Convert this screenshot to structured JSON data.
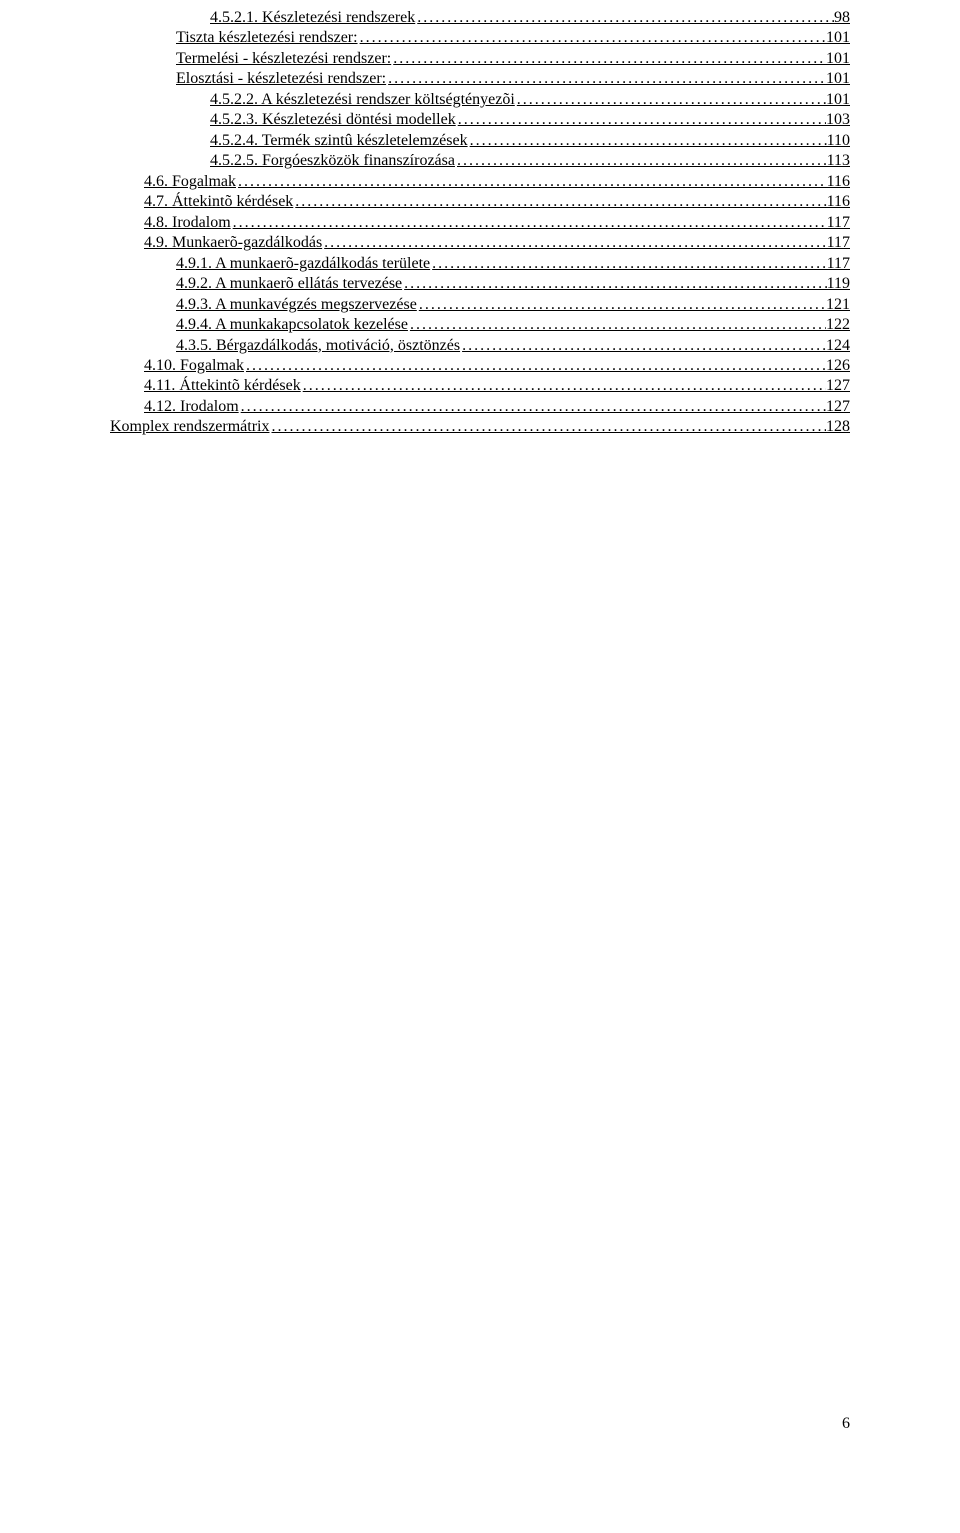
{
  "toc_entries": [
    {
      "label": "4.5.2.1. Készletezési rendszerek",
      "page": "98",
      "indent": 3
    },
    {
      "label": "Tiszta készletezési rendszer:",
      "page": "101",
      "indent": 2
    },
    {
      "label": "Termelési - készletezési rendszer:",
      "page": "101",
      "indent": 2
    },
    {
      "label": "Elosztási - készletezési rendszer:",
      "page": "101",
      "indent": 2
    },
    {
      "label": "4.5.2.2. A készletezési rendszer költségtényezõi",
      "page": "101",
      "indent": 3
    },
    {
      "label": "4.5.2.3. Készletezési döntési modellek",
      "page": "103",
      "indent": 3
    },
    {
      "label": "4.5.2.4. Termék szintû készletelemzések",
      "page": "110",
      "indent": 3
    },
    {
      "label": "4.5.2.5. Forgóeszközök finanszírozása",
      "page": "113",
      "indent": 3
    },
    {
      "label": "4.6. Fogalmak",
      "page": "116",
      "indent": 1
    },
    {
      "label": "4.7. Áttekintõ kérdések",
      "page": "116",
      "indent": 1
    },
    {
      "label": "4.8. Irodalom",
      "page": "117",
      "indent": 1
    },
    {
      "label": "4.9. Munkaerõ-gazdálkodás",
      "page": "117",
      "indent": 1
    },
    {
      "label": "4.9.1. A munkaerõ-gazdálkodás területe",
      "page": "117",
      "indent": 2
    },
    {
      "label": "4.9.2. A munkaerõ ellátás tervezése",
      "page": "119",
      "indent": 2
    },
    {
      "label": "4.9.3. A munkavégzés megszervezése",
      "page": "121",
      "indent": 2
    },
    {
      "label": "4.9.4. A munkakapcsolatok kezelése",
      "page": "122",
      "indent": 2
    },
    {
      "label": "4.3.5. Bérgazdálkodás, motiváció, ösztönzés",
      "page": "124",
      "indent": 2
    },
    {
      "label": "4.10. Fogalmak",
      "page": "126",
      "indent": 1
    },
    {
      "label": "4.11. Áttekintõ kérdések",
      "page": "127",
      "indent": 1
    },
    {
      "label": "4.12. Irodalom",
      "page": "127",
      "indent": 1
    },
    {
      "label": "Komplex rendszermátrix",
      "page": "128",
      "indent": 0
    }
  ],
  "page_number": "6",
  "colors": {
    "text": "#000000",
    "background": "#ffffff"
  },
  "typography": {
    "font_family": "Times New Roman",
    "font_size_pt": 12,
    "line_height": 1.28
  }
}
